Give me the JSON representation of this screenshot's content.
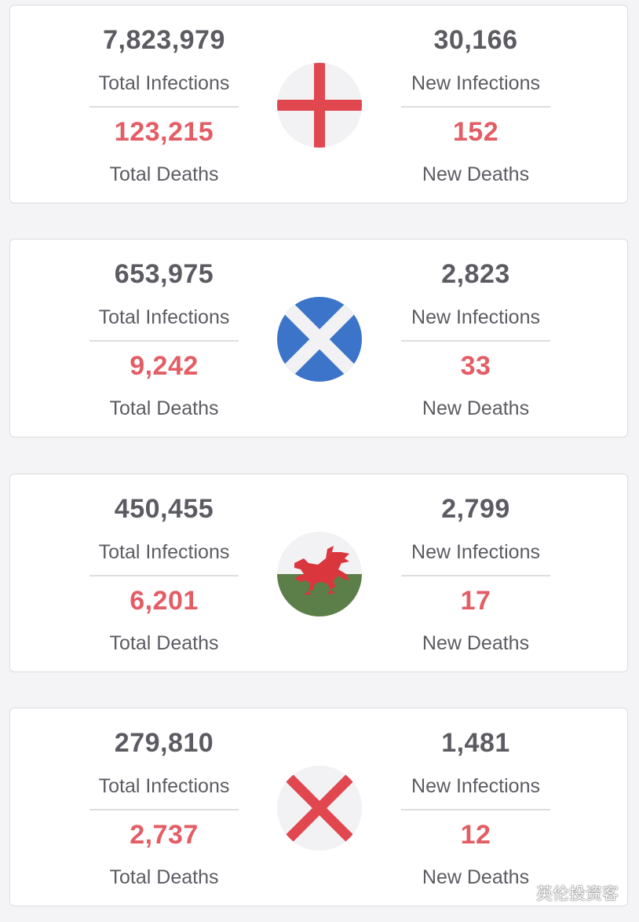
{
  "labels": {
    "total_infections": "Total Infections",
    "new_infections": "New Infections",
    "total_deaths": "Total Deaths",
    "new_deaths": "New Deaths"
  },
  "colors": {
    "number_text": "#5b5b62",
    "death_text": "#e45d64",
    "england_red": "#e0474e",
    "scotland_blue": "#3b74c8",
    "wales_green": "#5c7e48",
    "wales_red": "#d9363e",
    "flag_background": "#f2f2f4"
  },
  "regions": [
    {
      "flag_icon": "england-flag-icon",
      "total_infections": "7,823,979",
      "total_deaths": "123,215",
      "new_infections": "30,166",
      "new_deaths": "152"
    },
    {
      "flag_icon": "scotland-flag-icon",
      "total_infections": "653,975",
      "total_deaths": "9,242",
      "new_infections": "2,823",
      "new_deaths": "33"
    },
    {
      "flag_icon": "wales-flag-icon",
      "total_infections": "450,455",
      "total_deaths": "6,201",
      "new_infections": "2,799",
      "new_deaths": "17"
    },
    {
      "flag_icon": "northern-ireland-flag-icon",
      "total_infections": "279,810",
      "total_deaths": "2,737",
      "new_infections": "1,481",
      "new_deaths": "12"
    }
  ],
  "watermark": {
    "icon": "wechat-icon",
    "text": "英伦投资客"
  }
}
